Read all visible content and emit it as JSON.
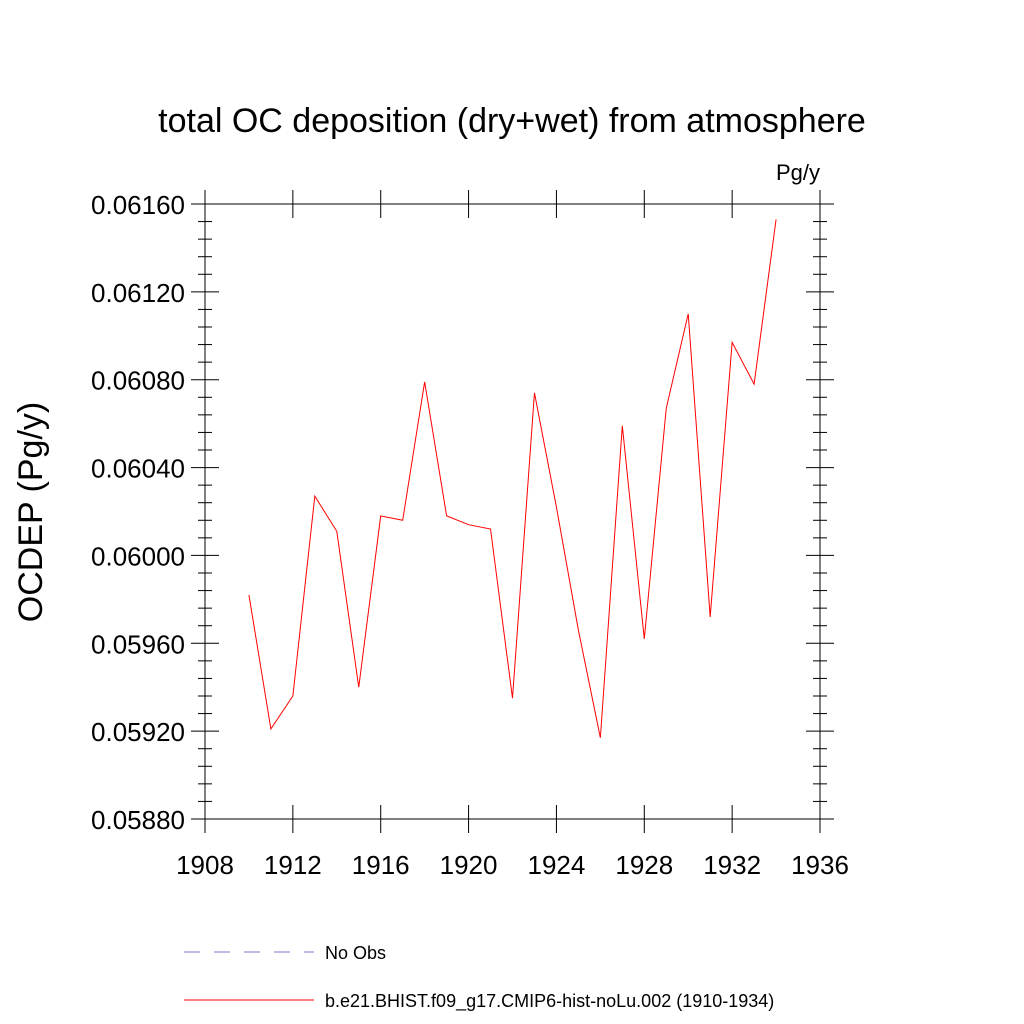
{
  "chart_data": {
    "type": "line",
    "title": "total OC deposition (dry+wet) from atmosphere",
    "units_label": "Pg/y",
    "ylabel": "OCDEP  (Pg/y)",
    "xlabel": "",
    "xlim": [
      1908,
      1936
    ],
    "ylim": [
      0.0588,
      0.0616
    ],
    "x_ticks": [
      "1908",
      "1912",
      "1916",
      "1920",
      "1924",
      "1928",
      "1932",
      "1936"
    ],
    "y_ticks": [
      "0.05880",
      "0.05920",
      "0.05960",
      "0.06000",
      "0.06040",
      "0.06080",
      "0.06120",
      "0.06160"
    ],
    "grid": false,
    "legend_position": "bottom",
    "series": [
      {
        "name": "b.e21.BHIST.f09_g17.CMIP6-hist-noLu.002 (1910-1934)",
        "color": "#ff0000",
        "style": "solid",
        "x": [
          1910,
          1911,
          1912,
          1913,
          1914,
          1915,
          1916,
          1917,
          1918,
          1919,
          1920,
          1921,
          1922,
          1923,
          1924,
          1925,
          1926,
          1927,
          1928,
          1929,
          1930,
          1931,
          1932,
          1933,
          1934
        ],
        "values": [
          0.05982,
          0.05921,
          0.05936,
          0.06027,
          0.06011,
          0.0594,
          0.06018,
          0.06016,
          0.06079,
          0.06018,
          0.06014,
          0.06012,
          0.05935,
          0.06074,
          0.06022,
          0.05966,
          0.05917,
          0.06059,
          0.05962,
          0.06067,
          0.0611,
          0.05972,
          0.06097,
          0.06078,
          0.06153
        ]
      }
    ],
    "legend": [
      {
        "label": "No Obs",
        "color": "#7777cc",
        "style": "dashed"
      },
      {
        "label": "b.e21.BHIST.f09_g17.CMIP6-hist-noLu.002 (1910-1934)",
        "color": "#ff0000",
        "style": "solid"
      }
    ]
  }
}
